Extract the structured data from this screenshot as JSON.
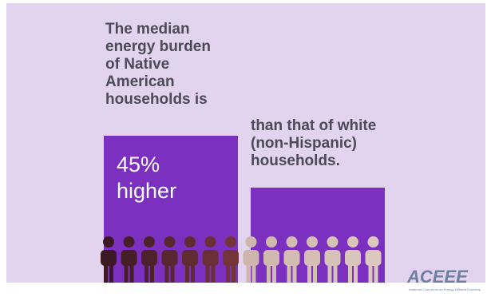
{
  "left_text": [
    "The median",
    "energy burden",
    "of Native",
    "American",
    "households is"
  ],
  "highlight": [
    "45%",
    "higher"
  ],
  "right_text": [
    "than that of white",
    "(non-Hispanic)",
    "households."
  ],
  "logo": "ACEEE",
  "logo_subtitle": "American Council for an Energy-Efficient Economy"
}
